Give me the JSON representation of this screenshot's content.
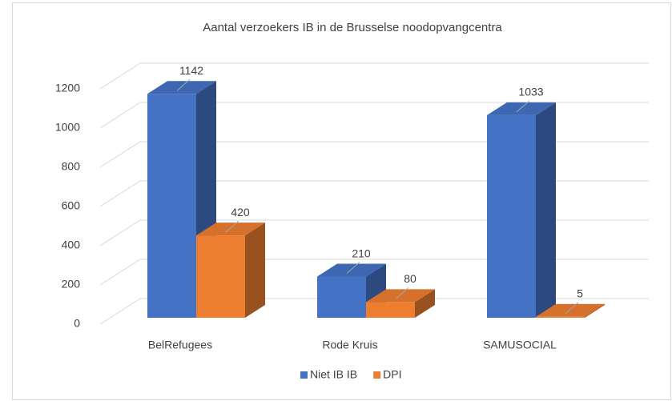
{
  "chart_data": {
    "type": "bar3d",
    "title": "Aantal verzoekers IB in de Brusselse noodopvangcentra",
    "categories": [
      "BelRefugees",
      "Rode Kruis",
      "SAMUSOCIAL"
    ],
    "series": [
      {
        "name": "Niet IB IB",
        "color": "#4472c4",
        "values": [
          1142,
          210,
          1033
        ]
      },
      {
        "name": "DPI",
        "color": "#ed7d31",
        "values": [
          420,
          80,
          5
        ]
      }
    ],
    "ylim": [
      0,
      1200
    ],
    "yticks": [
      0,
      200,
      400,
      600,
      800,
      1000,
      1200
    ],
    "grid": true,
    "legend": "bottom"
  }
}
